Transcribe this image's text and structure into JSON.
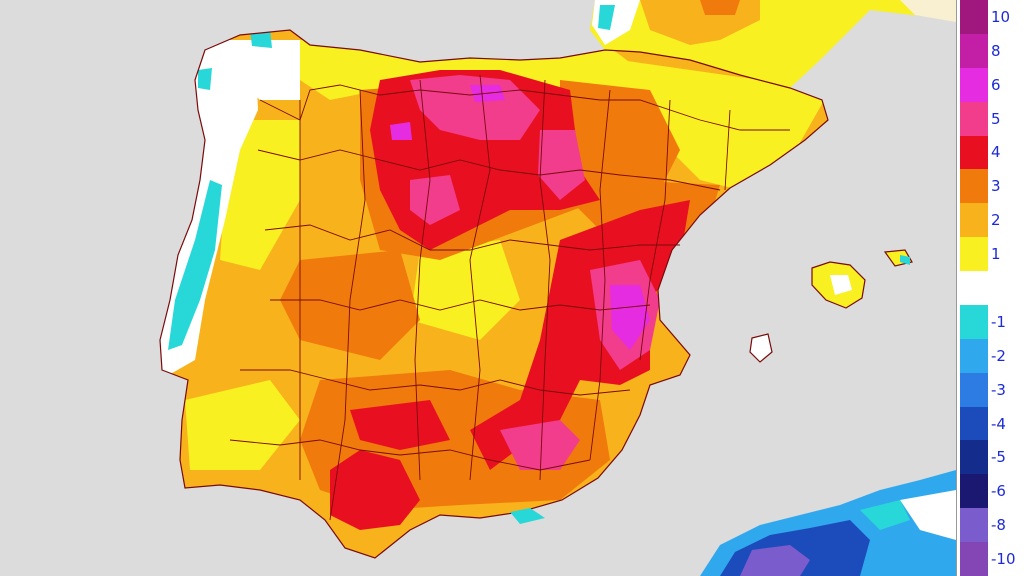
{
  "legend": {
    "entries": [
      {
        "label": "10",
        "color": "#a0187e"
      },
      {
        "label": "8",
        "color": "#c21ea6"
      },
      {
        "label": "6",
        "color": "#e62ce0"
      },
      {
        "label": "5",
        "color": "#f23c8c"
      },
      {
        "label": "4",
        "color": "#e81020"
      },
      {
        "label": "3",
        "color": "#f07a0c"
      },
      {
        "label": "2",
        "color": "#f8b21c"
      },
      {
        "label": "1",
        "color": "#f8f020"
      },
      {
        "label": "",
        "color": "#ffffff"
      },
      {
        "label": "-1",
        "color": "#28d8d8"
      },
      {
        "label": "-2",
        "color": "#30a8ee"
      },
      {
        "label": "-3",
        "color": "#2c7ce4"
      },
      {
        "label": "-4",
        "color": "#1c4cbc"
      },
      {
        "label": "-5",
        "color": "#142c8c"
      },
      {
        "label": "-6",
        "color": "#1a1870"
      },
      {
        "label": "-8",
        "color": "#7a5ccc"
      },
      {
        "label": "-10",
        "color": "#8446b4"
      }
    ]
  },
  "map": {
    "sea_color": "#dcdcdc",
    "border_color": "#7a0a0a"
  }
}
